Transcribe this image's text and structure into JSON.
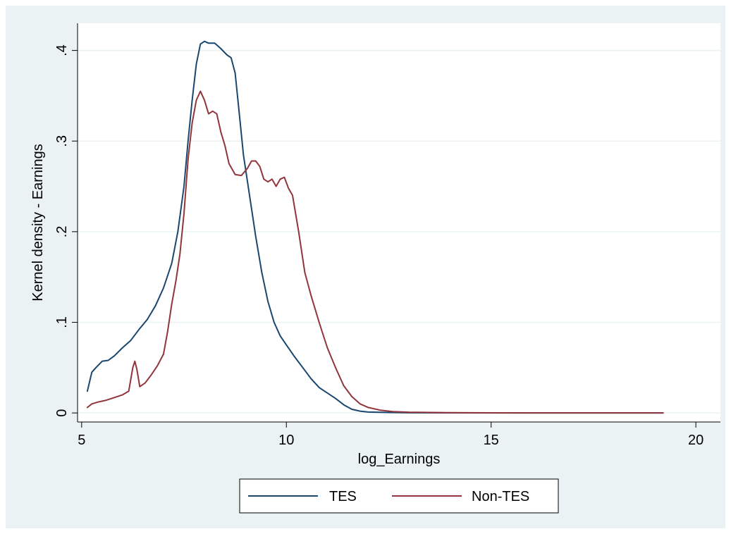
{
  "chart_data": {
    "type": "line",
    "xlabel": "log_Earnings",
    "ylabel": "Kernel density - Earnings",
    "xlim": [
      4.9,
      20.6
    ],
    "ylim": [
      -0.01,
      0.43
    ],
    "x_ticks": [
      {
        "value": 5,
        "label": "5"
      },
      {
        "value": 10,
        "label": "10"
      },
      {
        "value": 15,
        "label": "15"
      },
      {
        "value": 20,
        "label": "20"
      }
    ],
    "y_ticks": [
      {
        "value": 0,
        "label": "0"
      },
      {
        "value": 0.1,
        "label": ".1"
      },
      {
        "value": 0.2,
        "label": ".2"
      },
      {
        "value": 0.3,
        "label": ".3"
      },
      {
        "value": 0.4,
        "label": ".4"
      }
    ],
    "grid": "horizontal",
    "legend_position": "bottom",
    "colors": {
      "plot_bg": "#ffffff",
      "outer_bg": "#eaf2f3",
      "grid": "#eaf2f3"
    },
    "series": [
      {
        "name": "TES",
        "color": "#1a476f",
        "x": [
          5.14,
          5.25,
          5.35,
          5.5,
          5.65,
          5.8,
          6.0,
          6.2,
          6.4,
          6.6,
          6.8,
          7.0,
          7.2,
          7.35,
          7.5,
          7.6,
          7.7,
          7.8,
          7.9,
          8.0,
          8.1,
          8.25,
          8.4,
          8.55,
          8.65,
          8.75,
          8.85,
          8.95,
          9.1,
          9.25,
          9.4,
          9.55,
          9.7,
          9.85,
          10.0,
          10.2,
          10.4,
          10.6,
          10.8,
          11.0,
          11.2,
          11.4,
          11.6,
          11.8,
          12.0,
          12.5,
          13.0,
          14.0,
          15.0,
          16.0,
          17.0,
          18.0,
          19.2
        ],
        "y": [
          0.024,
          0.045,
          0.05,
          0.057,
          0.058,
          0.063,
          0.072,
          0.08,
          0.092,
          0.103,
          0.118,
          0.138,
          0.165,
          0.2,
          0.25,
          0.3,
          0.345,
          0.385,
          0.407,
          0.41,
          0.408,
          0.408,
          0.402,
          0.395,
          0.392,
          0.375,
          0.33,
          0.285,
          0.24,
          0.195,
          0.155,
          0.123,
          0.1,
          0.085,
          0.075,
          0.062,
          0.05,
          0.038,
          0.028,
          0.022,
          0.016,
          0.009,
          0.004,
          0.002,
          0.001,
          0.0005,
          0.0002,
          0.0001,
          0.0,
          0.0,
          0.0,
          0.0,
          0.0
        ]
      },
      {
        "name": "Non-TES",
        "color": "#90353b",
        "x": [
          5.14,
          5.25,
          5.4,
          5.6,
          5.8,
          6.0,
          6.15,
          6.25,
          6.3,
          6.35,
          6.42,
          6.55,
          6.7,
          6.85,
          7.0,
          7.1,
          7.2,
          7.3,
          7.4,
          7.5,
          7.6,
          7.7,
          7.8,
          7.9,
          8.0,
          8.1,
          8.2,
          8.3,
          8.4,
          8.5,
          8.6,
          8.75,
          8.9,
          9.05,
          9.15,
          9.25,
          9.35,
          9.45,
          9.55,
          9.65,
          9.75,
          9.85,
          9.95,
          10.05,
          10.15,
          10.3,
          10.45,
          10.6,
          10.8,
          11.0,
          11.2,
          11.4,
          11.6,
          11.8,
          12.0,
          12.3,
          12.6,
          13.0,
          14.0,
          15.0,
          16.0,
          17.0,
          18.0,
          19.2
        ],
        "y": [
          0.006,
          0.01,
          0.012,
          0.014,
          0.017,
          0.02,
          0.024,
          0.05,
          0.057,
          0.048,
          0.029,
          0.033,
          0.042,
          0.052,
          0.065,
          0.09,
          0.12,
          0.145,
          0.175,
          0.22,
          0.28,
          0.32,
          0.345,
          0.355,
          0.345,
          0.33,
          0.333,
          0.33,
          0.31,
          0.295,
          0.275,
          0.263,
          0.262,
          0.27,
          0.278,
          0.278,
          0.272,
          0.258,
          0.255,
          0.258,
          0.25,
          0.258,
          0.26,
          0.248,
          0.24,
          0.2,
          0.155,
          0.13,
          0.1,
          0.072,
          0.05,
          0.03,
          0.018,
          0.01,
          0.006,
          0.003,
          0.0015,
          0.0008,
          0.0003,
          0.0001,
          0.0,
          0.0,
          0.0,
          0.0
        ]
      }
    ]
  }
}
